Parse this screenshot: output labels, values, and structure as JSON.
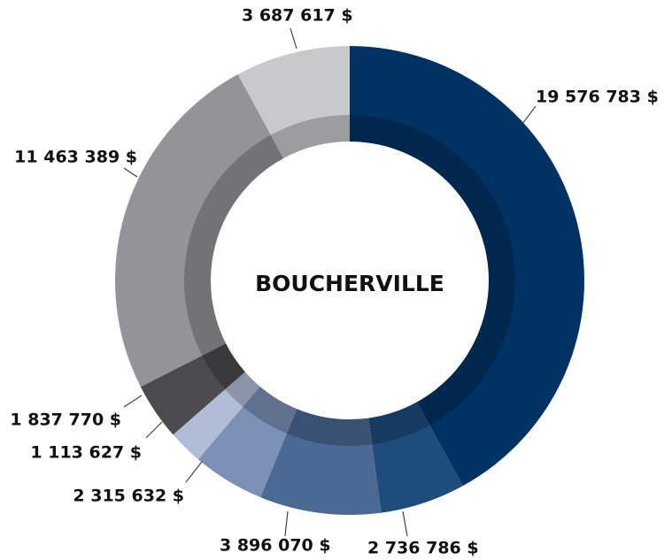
{
  "chart_data": {
    "type": "pie",
    "title": "BOUCHERVILLE",
    "categories": [
      null,
      null,
      null,
      null,
      null,
      null,
      null,
      null
    ],
    "values": [
      19576783,
      2736786,
      3896070,
      2315632,
      1113627,
      1837770,
      11463389,
      3687617
    ],
    "value_labels": [
      "19 576 783 $",
      "2 736 786 $",
      "3 896 070 $",
      "2 315 632 $",
      "1 113 627 $",
      "1 837 770 $",
      "11 463 389 $",
      "3 687 617 $"
    ],
    "colors": [
      "#003263",
      "#1e4c7c",
      "#4a6994",
      "#7b91b5",
      "#b1bdd7",
      "#4b4b4d",
      "#929497",
      "#c8c9cb"
    ]
  }
}
